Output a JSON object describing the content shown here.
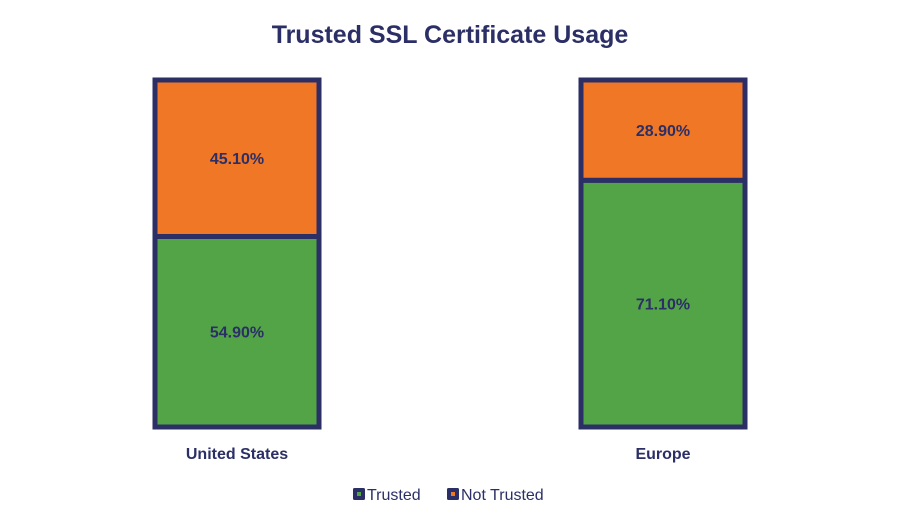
{
  "chart_data": {
    "type": "bar",
    "stacked": true,
    "normalized": true,
    "title": "Trusted SSL Certificate Usage",
    "categories": [
      "United States",
      "Europe"
    ],
    "series": [
      {
        "name": "Trusted",
        "values": [
          54.9,
          71.1
        ],
        "labels": [
          "54.90%",
          "71.10%"
        ],
        "color": "#53a447"
      },
      {
        "name": "Not Trusted",
        "values": [
          45.1,
          28.9
        ],
        "labels": [
          "45.10%",
          "28.90%"
        ],
        "color": "#f07726"
      }
    ],
    "ylim": [
      0,
      100
    ],
    "grid": false,
    "legend_position": "bottom",
    "colors": {
      "outline": "#2b2f66",
      "text": "#2b2f66"
    }
  }
}
